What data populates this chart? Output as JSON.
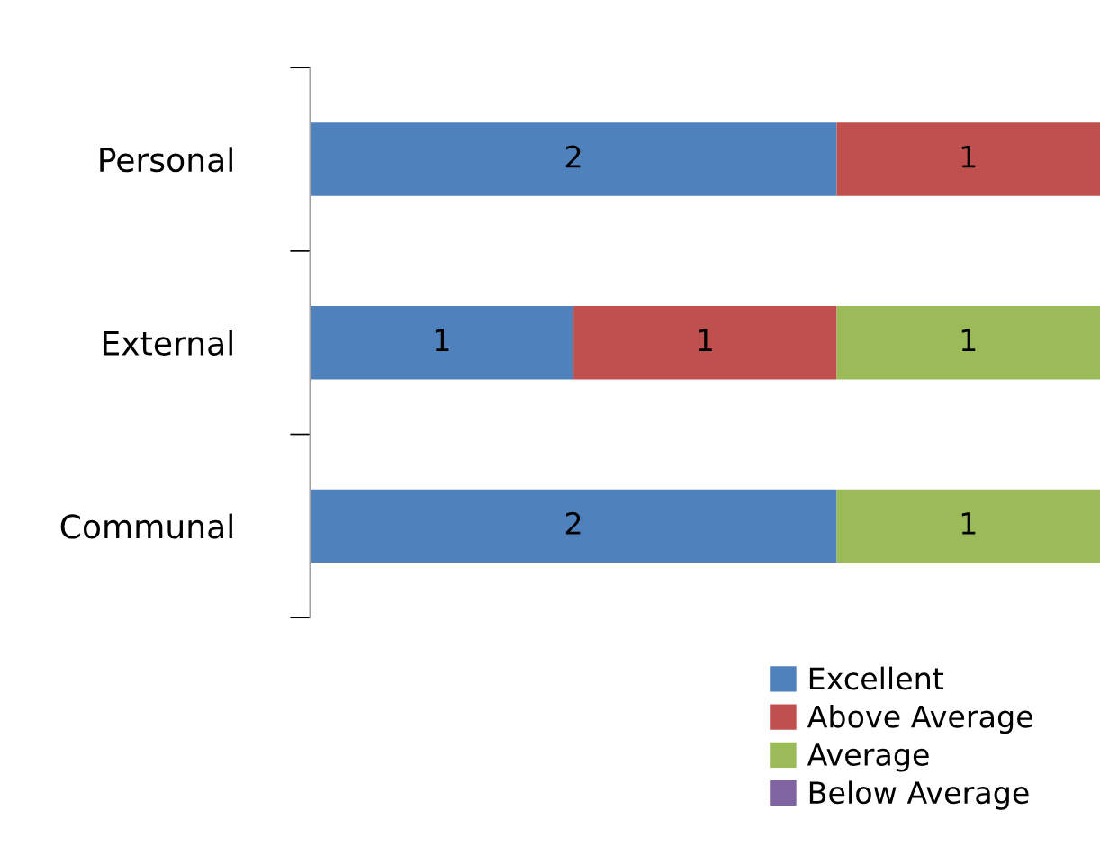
{
  "chart_data": {
    "type": "bar",
    "orientation": "horizontal",
    "stacked": true,
    "categories": [
      "Personal",
      "External",
      "Communal"
    ],
    "series": [
      {
        "name": "Excellent",
        "color": "#4f81bd",
        "values": [
          2,
          1,
          2
        ]
      },
      {
        "name": "Above Average",
        "color": "#c0504d",
        "values": [
          1,
          1,
          null
        ]
      },
      {
        "name": "Average",
        "color": "#9bbb59",
        "values": [
          null,
          1,
          1
        ]
      },
      {
        "name": "Below Average",
        "color": "#8064a2",
        "values": [
          null,
          null,
          null
        ]
      }
    ],
    "xlim": [
      0,
      3
    ],
    "data_labels": true,
    "tick_labels": "y",
    "legend": "bottom",
    "grid": false
  }
}
